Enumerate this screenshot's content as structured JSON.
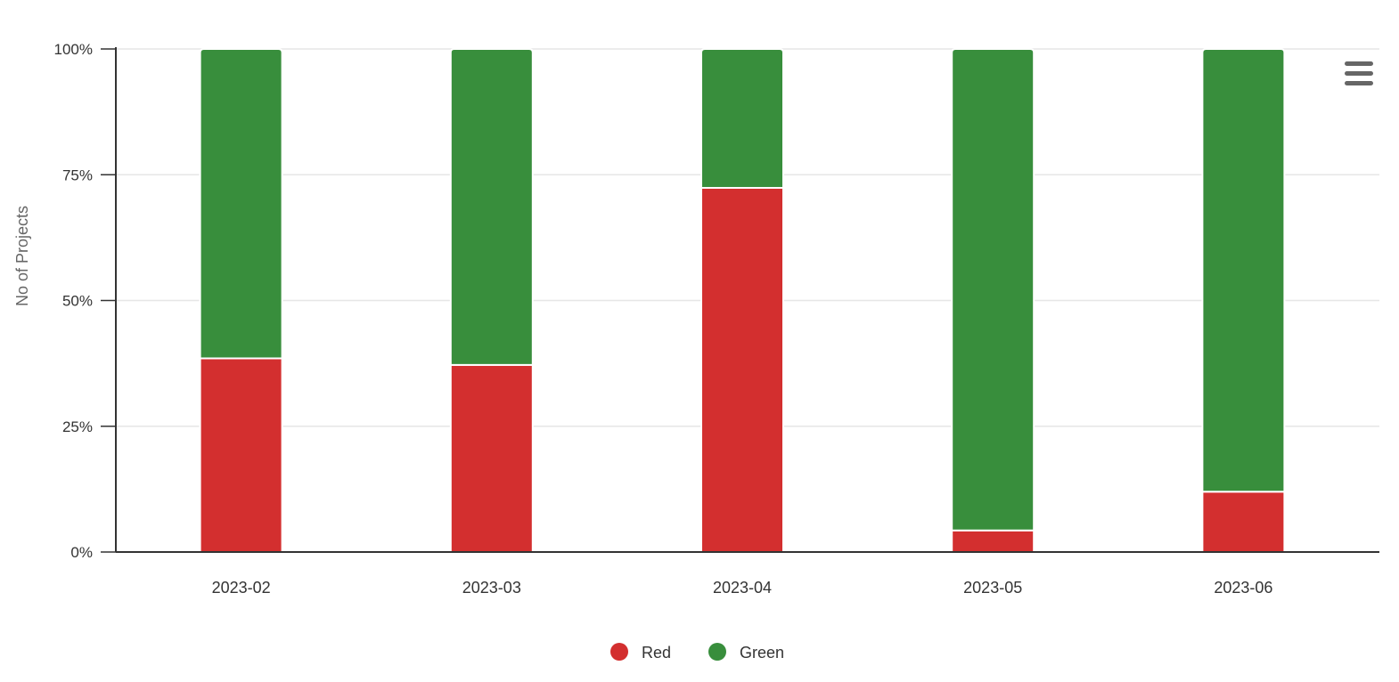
{
  "chart_data": {
    "type": "bar",
    "stacking": "percent",
    "categories": [
      "2023-02",
      "2023-03",
      "2023-04",
      "2023-05",
      "2023-06"
    ],
    "series": [
      {
        "name": "Red",
        "color": "#d32f2f",
        "values": [
          38.5,
          37.2,
          72.4,
          4.3,
          12.0
        ]
      },
      {
        "name": "Green",
        "color": "#388e3c",
        "values": [
          61.5,
          62.8,
          27.6,
          95.7,
          88.0
        ]
      }
    ],
    "ylabel": "No of Projects",
    "xlabel": "",
    "ylim": [
      0,
      100
    ],
    "yticks": [
      "0%",
      "25%",
      "50%",
      "75%",
      "100%"
    ],
    "ytick_values": [
      0,
      25,
      50,
      75,
      100
    ],
    "grid": true,
    "legend_position": "bottom-center"
  },
  "menu": {
    "icon": "hamburger-menu-icon"
  }
}
